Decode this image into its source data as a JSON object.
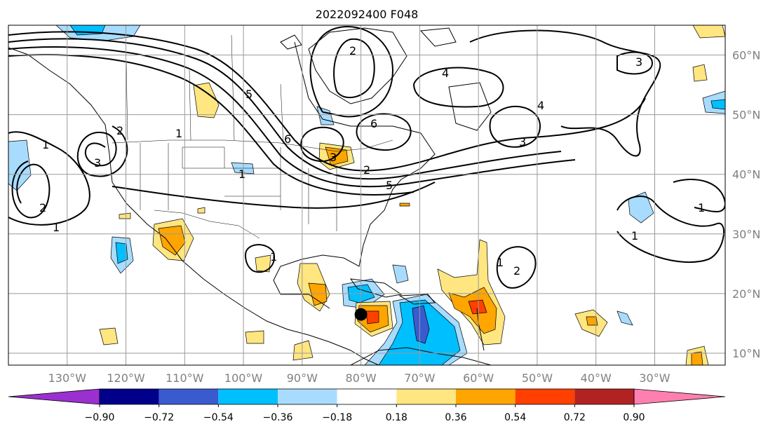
{
  "title": "2022092400 F048",
  "map": {
    "lon_range": [
      -140,
      -18
    ],
    "lat_range": [
      8,
      65
    ],
    "grid_step_deg": 10,
    "grid_color": "#9a9a9a",
    "coast_color": "#000000"
  },
  "lon_labels": [
    "130°W",
    "120°W",
    "110°W",
    "100°W",
    "90°W",
    "80°W",
    "70°W",
    "60°W",
    "50°W",
    "40°W",
    "30°W"
  ],
  "lat_labels": [
    "10°N",
    "20°N",
    "30°N",
    "40°N",
    "50°N",
    "60°N"
  ],
  "colorbar": {
    "ticks": [
      "−0.90",
      "−0.72",
      "−0.54",
      "−0.36",
      "−0.18",
      "0.18",
      "0.36",
      "0.54",
      "0.72",
      "0.90"
    ],
    "colors": [
      "#9b30d0",
      "#00008b",
      "#3a5bcf",
      "#00bfff",
      "#a8dcff",
      "#ffffff",
      "#ffe680",
      "#ffa500",
      "#ff4000",
      "#b22222",
      "#ff80b0"
    ]
  },
  "contour_labels": [
    "1",
    "2",
    "3",
    "4",
    "5",
    "6"
  ],
  "storm_marker": {
    "lon": -80,
    "lat": 16.5,
    "color": "#000000"
  }
}
